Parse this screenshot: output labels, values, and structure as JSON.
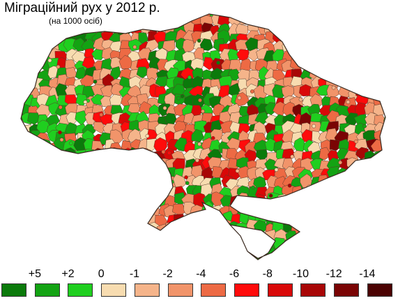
{
  "header": {
    "title": "Міграційний рух у 2012 р.",
    "subtitle": "(на 1000 осіб)"
  },
  "legend": {
    "labels": [
      "+5",
      "+2",
      "0",
      "-1",
      "-2",
      "-4",
      "-6",
      "-8",
      "-10",
      "-12",
      "-14"
    ],
    "colors": [
      "#0b7a0b",
      "#13a313",
      "#1fcf1f",
      "#f7dcb0",
      "#f5b48a",
      "#f1946a",
      "#ed6a44",
      "#ff0b0b",
      "#d90808",
      "#a80606",
      "#7a0404",
      "#4b0202"
    ]
  },
  "map": {
    "fill_colors": [
      "#0b7a0b",
      "#13a313",
      "#1fcf1f",
      "#f7dcb0",
      "#f5b48a",
      "#f1946a",
      "#ed6a44",
      "#ff0b0b",
      "#d90808",
      "#a80606",
      "#7a0404"
    ],
    "outline_color": "#5a3a2a"
  }
}
